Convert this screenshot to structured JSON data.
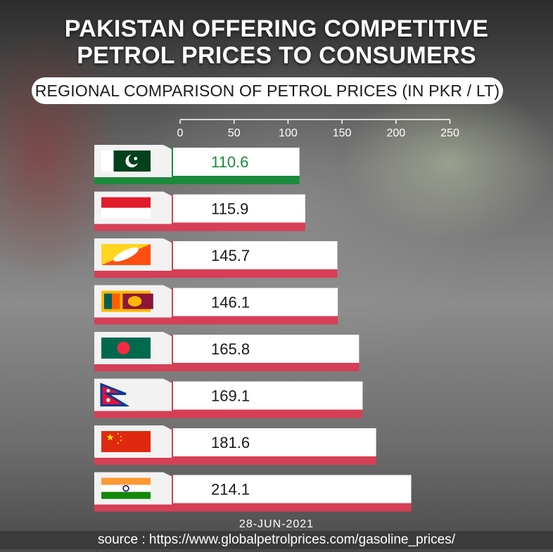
{
  "title_lines": [
    "PAKISTAN OFFERING COMPETITIVE",
    "PETROL PRICES TO CONSUMERS"
  ],
  "subtitle": "REGIONAL COMPARISON OF PETROL PRICES (IN PKR / LT)",
  "date": "28-JUN-2021",
  "source": "source : https://www.globalpetrolprices.com/gasoline_prices/",
  "colors": {
    "highlight": "#1b8a3c",
    "bar_base": "#d63f55",
    "bar_face": "#ffffff"
  },
  "chart_data": {
    "type": "bar",
    "orientation": "horizontal",
    "axis_position": "top",
    "xlim": [
      0,
      250
    ],
    "x_ticks": [
      0,
      50,
      100,
      150,
      200,
      250
    ],
    "categories": [
      "Pakistan",
      "Indonesia",
      "Bhutan",
      "Sri Lanka",
      "Bangladesh",
      "Nepal",
      "China",
      "India"
    ],
    "flags": [
      "pakistan-flag",
      "indonesia-flag",
      "bhutan-flag",
      "sri-lanka-flag",
      "bangladesh-flag",
      "nepal-flag",
      "china-flag",
      "india-flag"
    ],
    "values": [
      110.6,
      115.9,
      145.7,
      146.1,
      165.8,
      169.1,
      181.6,
      214.1
    ],
    "value_labels": [
      "110.6",
      "115.9",
      "145.7",
      "146.1",
      "165.8",
      "169.1",
      "181.6",
      "214.1"
    ],
    "highlight_index": 0,
    "grid": false
  }
}
